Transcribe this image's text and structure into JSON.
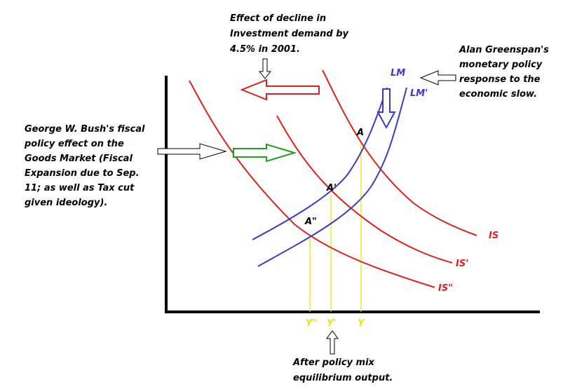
{
  "annotations": {
    "investment": {
      "lines": [
        "Effect of decline in",
        "Investment demand by",
        "4.5% in 2001."
      ]
    },
    "greenspan": {
      "lines": [
        "Alan Greenspan's",
        "monetary policy",
        "response to the",
        "economic slow."
      ]
    },
    "bush": {
      "lines": [
        "George W. Bush's fiscal",
        "policy effect on the",
        "Goods Market (Fiscal",
        "Expansion due to Sep.",
        "11; as well as Tax cut",
        "given ideology)."
      ]
    },
    "output": {
      "lines": [
        "After policy mix",
        "equilibrium output."
      ]
    }
  },
  "curves": {
    "lm": "LM",
    "lm_prime": "LM'",
    "is": "IS",
    "is_prime": "IS'",
    "is_double": "IS\""
  },
  "points": {
    "a": "A",
    "a_prime": "A'",
    "a_double": "A\""
  },
  "outputs": {
    "y_double": "Y\"",
    "y_prime": "Y'",
    "y": "Y"
  }
}
